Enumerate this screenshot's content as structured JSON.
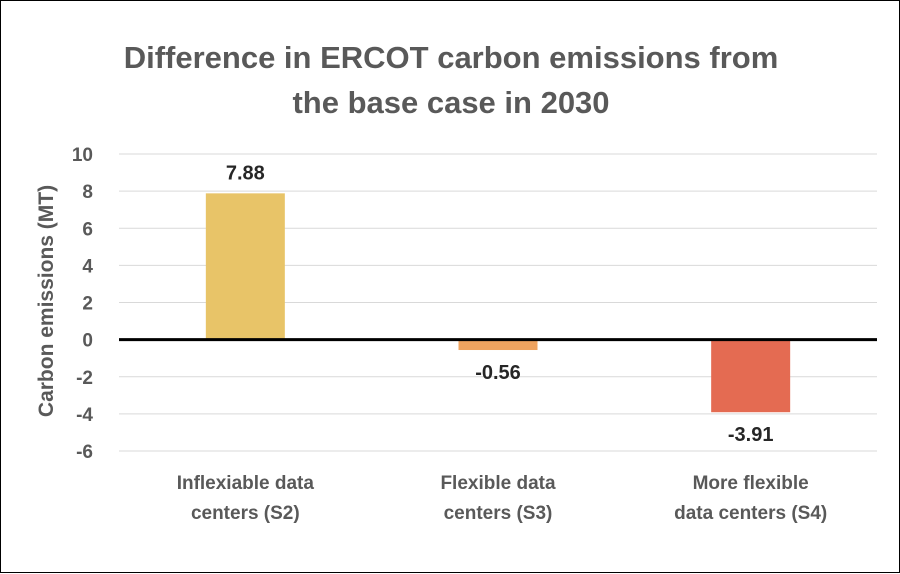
{
  "chart_data": {
    "type": "bar",
    "title": [
      "Difference in ERCOT carbon emissions from",
      "the base case in 2030"
    ],
    "ylabel": "Carbon emissions (MT)",
    "xlabel": "",
    "ylim": [
      -6,
      10
    ],
    "yticks": [
      "10",
      "8",
      "6",
      "4",
      "2",
      "0",
      "-2",
      "-4",
      "-6"
    ],
    "ytick_values": [
      10,
      8,
      6,
      4,
      2,
      0,
      -2,
      -4,
      -6
    ],
    "categories": [
      [
        "Inflexiable data",
        "centers (S2)"
      ],
      [
        "Flexible data",
        "centers (S3)"
      ],
      [
        "More flexible",
        "data centers (S4)"
      ]
    ],
    "values": [
      7.88,
      -0.56,
      -3.91
    ],
    "data_labels": [
      "7.88",
      "-0.56",
      "-3.91"
    ],
    "colors": [
      "#E8C468",
      "#EFA35F",
      "#E46B52"
    ],
    "grid": true,
    "legend": "none"
  }
}
